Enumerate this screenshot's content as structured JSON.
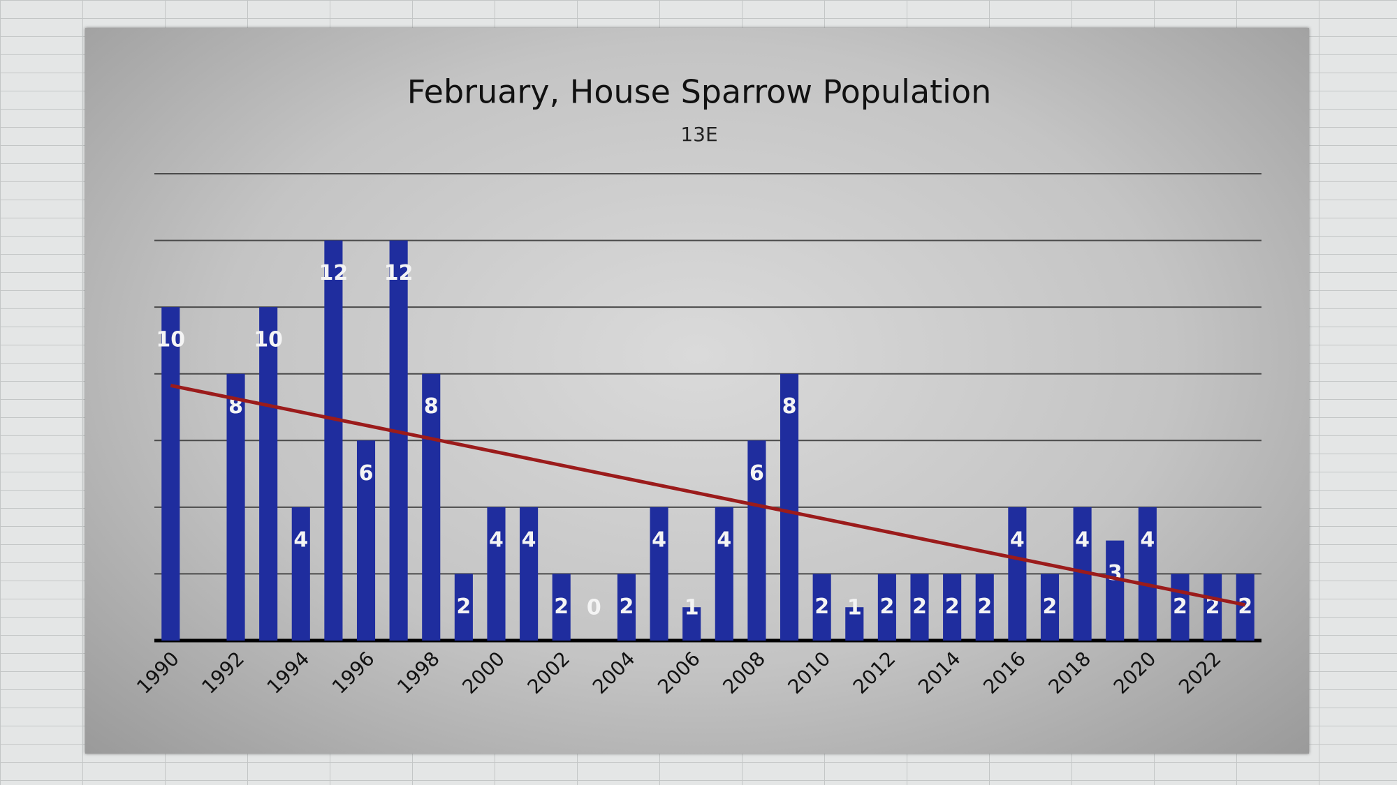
{
  "chart_data": {
    "type": "bar",
    "title": "February, House Sparrow Population",
    "subtitle": "13E",
    "categories": [
      "1990",
      null,
      "1992",
      null,
      "1994",
      null,
      "1996",
      null,
      "1998",
      null,
      "2000",
      null,
      "2002",
      null,
      "2004",
      null,
      "2006",
      null,
      "2008",
      null,
      "2010",
      null,
      "2012",
      null,
      "2014",
      null,
      "2016",
      null,
      "2018",
      null,
      "2020",
      null,
      "2022",
      null
    ],
    "values": [
      10,
      null,
      8,
      10,
      4,
      12,
      6,
      12,
      8,
      2,
      4,
      4,
      2,
      0,
      2,
      4,
      1,
      4,
      6,
      8,
      2,
      1,
      2,
      2,
      2,
      2,
      4,
      2,
      4,
      3,
      4,
      2,
      2,
      2
    ],
    "color": "#1f2d9e",
    "ylim": [
      0,
      14
    ],
    "yticks": [
      0,
      2,
      4,
      6,
      8,
      10,
      12,
      14
    ],
    "grid": true,
    "trendline": {
      "values": [
        7.65,
        1.07
      ],
      "color": "#9b1b1b"
    }
  }
}
